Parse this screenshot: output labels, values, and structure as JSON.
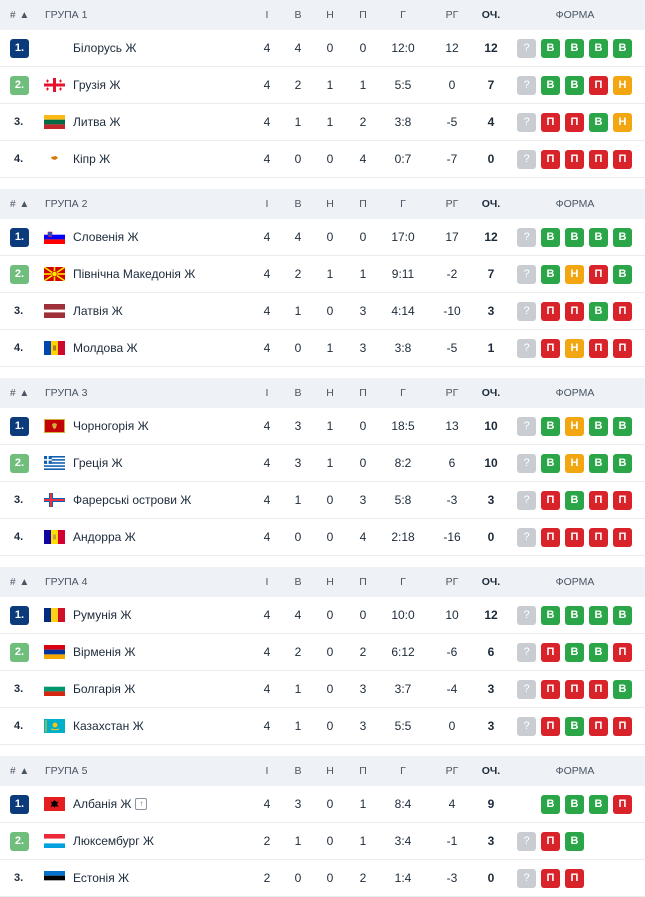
{
  "header_labels": {
    "sort": "# ▲",
    "played": "І",
    "won": "В",
    "drawn": "Н",
    "lost": "П",
    "goals": "Г",
    "goal_diff": "РГ",
    "points": "ОЧ.",
    "form": "ФОРМА"
  },
  "groups": [
    {
      "name": "ГРУПА 1",
      "rows": [
        {
          "pos": "1.",
          "team": "Білорусь Ж",
          "flag": "flag-belarus",
          "p": "4",
          "w": "4",
          "d": "0",
          "l": "0",
          "g": "12:0",
          "gd": "12",
          "pts": "12",
          "form": [
            "?",
            "В",
            "В",
            "В",
            "В"
          ]
        },
        {
          "pos": "2.",
          "team": "Грузія Ж",
          "flag": "flag-georgia",
          "p": "4",
          "w": "2",
          "d": "1",
          "l": "1",
          "g": "5:5",
          "gd": "0",
          "pts": "7",
          "form": [
            "?",
            "В",
            "В",
            "П",
            "Н"
          ]
        },
        {
          "pos": "3.",
          "team": "Литва Ж",
          "flag": "flag-lithuania",
          "p": "4",
          "w": "1",
          "d": "1",
          "l": "2",
          "g": "3:8",
          "gd": "-5",
          "pts": "4",
          "form": [
            "?",
            "П",
            "П",
            "В",
            "Н"
          ]
        },
        {
          "pos": "4.",
          "team": "Кіпр Ж",
          "flag": "flag-cyprus",
          "p": "4",
          "w": "0",
          "d": "0",
          "l": "4",
          "g": "0:7",
          "gd": "-7",
          "pts": "0",
          "form": [
            "?",
            "П",
            "П",
            "П",
            "П"
          ]
        }
      ]
    },
    {
      "name": "ГРУПА 2",
      "rows": [
        {
          "pos": "1.",
          "team": "Словенія Ж",
          "flag": "flag-slovenia",
          "p": "4",
          "w": "4",
          "d": "0",
          "l": "0",
          "g": "17:0",
          "gd": "17",
          "pts": "12",
          "form": [
            "?",
            "В",
            "В",
            "В",
            "В"
          ]
        },
        {
          "pos": "2.",
          "team": "Північна Македонія Ж",
          "flag": "flag-north-macedonia",
          "p": "4",
          "w": "2",
          "d": "1",
          "l": "1",
          "g": "9:11",
          "gd": "-2",
          "pts": "7",
          "form": [
            "?",
            "В",
            "Н",
            "П",
            "В"
          ]
        },
        {
          "pos": "3.",
          "team": "Латвія Ж",
          "flag": "flag-latvia",
          "p": "4",
          "w": "1",
          "d": "0",
          "l": "3",
          "g": "4:14",
          "gd": "-10",
          "pts": "3",
          "form": [
            "?",
            "П",
            "П",
            "В",
            "П"
          ]
        },
        {
          "pos": "4.",
          "team": "Молдова Ж",
          "flag": "flag-moldova",
          "p": "4",
          "w": "0",
          "d": "1",
          "l": "3",
          "g": "3:8",
          "gd": "-5",
          "pts": "1",
          "form": [
            "?",
            "П",
            "Н",
            "П",
            "П"
          ]
        }
      ]
    },
    {
      "name": "ГРУПА 3",
      "rows": [
        {
          "pos": "1.",
          "team": "Чорногорія Ж",
          "flag": "flag-montenegro",
          "p": "4",
          "w": "3",
          "d": "1",
          "l": "0",
          "g": "18:5",
          "gd": "13",
          "pts": "10",
          "form": [
            "?",
            "В",
            "Н",
            "В",
            "В"
          ]
        },
        {
          "pos": "2.",
          "team": "Греція Ж",
          "flag": "flag-greece",
          "p": "4",
          "w": "3",
          "d": "1",
          "l": "0",
          "g": "8:2",
          "gd": "6",
          "pts": "10",
          "form": [
            "?",
            "В",
            "Н",
            "В",
            "В"
          ]
        },
        {
          "pos": "3.",
          "team": "Фарерські острови Ж",
          "flag": "flag-faroe-islands",
          "p": "4",
          "w": "1",
          "d": "0",
          "l": "3",
          "g": "5:8",
          "gd": "-3",
          "pts": "3",
          "form": [
            "?",
            "П",
            "В",
            "П",
            "П"
          ]
        },
        {
          "pos": "4.",
          "team": "Андорра Ж",
          "flag": "flag-andorra",
          "p": "4",
          "w": "0",
          "d": "0",
          "l": "4",
          "g": "2:18",
          "gd": "-16",
          "pts": "0",
          "form": [
            "?",
            "П",
            "П",
            "П",
            "П"
          ]
        }
      ]
    },
    {
      "name": "ГРУПА 4",
      "rows": [
        {
          "pos": "1.",
          "team": "Румунія Ж",
          "flag": "flag-romania",
          "p": "4",
          "w": "4",
          "d": "0",
          "l": "0",
          "g": "10:0",
          "gd": "10",
          "pts": "12",
          "form": [
            "?",
            "В",
            "В",
            "В",
            "В"
          ]
        },
        {
          "pos": "2.",
          "team": "Вірменія Ж",
          "flag": "flag-armenia",
          "p": "4",
          "w": "2",
          "d": "0",
          "l": "2",
          "g": "6:12",
          "gd": "-6",
          "pts": "6",
          "form": [
            "?",
            "П",
            "В",
            "В",
            "П"
          ]
        },
        {
          "pos": "3.",
          "team": "Болгарія Ж",
          "flag": "flag-bulgaria",
          "p": "4",
          "w": "1",
          "d": "0",
          "l": "3",
          "g": "3:7",
          "gd": "-4",
          "pts": "3",
          "form": [
            "?",
            "П",
            "П",
            "П",
            "В"
          ]
        },
        {
          "pos": "4.",
          "team": "Казахстан Ж",
          "flag": "flag-kazakhstan",
          "p": "4",
          "w": "1",
          "d": "0",
          "l": "3",
          "g": "5:5",
          "gd": "0",
          "pts": "3",
          "form": [
            "?",
            "П",
            "В",
            "П",
            "П"
          ]
        }
      ]
    },
    {
      "name": "ГРУПА 5",
      "rows": [
        {
          "pos": "1.",
          "team": "Албанія Ж",
          "flag": "flag-albania",
          "p": "4",
          "w": "3",
          "d": "0",
          "l": "1",
          "g": "8:4",
          "gd": "4",
          "pts": "9",
          "form": [
            "",
            "В",
            "В",
            "В",
            "П"
          ],
          "up_icon": true
        },
        {
          "pos": "2.",
          "team": "Люксембург Ж",
          "flag": "flag-luxembourg",
          "p": "2",
          "w": "1",
          "d": "0",
          "l": "1",
          "g": "3:4",
          "gd": "-1",
          "pts": "3",
          "form": [
            "?",
            "П",
            "В"
          ]
        },
        {
          "pos": "3.",
          "team": "Естонія Ж",
          "flag": "flag-estonia",
          "p": "2",
          "w": "0",
          "d": "0",
          "l": "2",
          "g": "1:4",
          "gd": "-3",
          "pts": "0",
          "form": [
            "?",
            "П",
            "П"
          ]
        }
      ]
    }
  ],
  "colors": {
    "win": "#2aa547",
    "loss": "#d8232a",
    "draw": "#f2a611",
    "unknown": "#c9cdd2",
    "pos_1": "#0b3b7a",
    "pos_2": "#6fbe7c",
    "header_bg": "#eef1f5"
  }
}
